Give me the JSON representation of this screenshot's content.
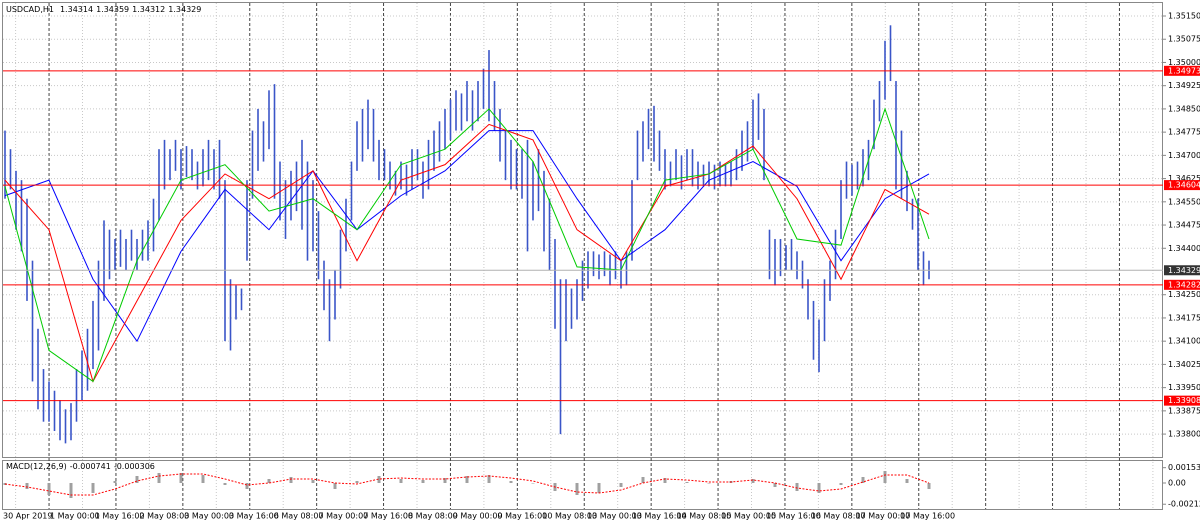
{
  "chart_data": [
    {
      "type": "ohlc",
      "title": "USDCAD,H1",
      "last_bar": [
        1.34314,
        1.34359,
        1.34312,
        1.34329
      ],
      "bars": {
        "color": "#3a55c8",
        "high": [
          1.3478,
          1.3472,
          1.3465,
          1.3462,
          1.3456,
          1.3436,
          1.3414,
          1.3401,
          1.3397,
          1.3394,
          1.3391,
          1.3388,
          1.339,
          1.3401,
          1.3407,
          1.3414,
          1.3423,
          1.3436,
          1.3449,
          1.3446,
          1.3443,
          1.3446,
          1.3443,
          1.3446,
          1.3443,
          1.3446,
          1.3449,
          1.3456,
          1.3472,
          1.3475,
          1.3472,
          1.3475,
          1.3472,
          1.3473,
          1.3472,
          1.3468,
          1.3472,
          1.3475,
          1.3472,
          1.3475,
          1.3462,
          1.343,
          1.3428,
          1.3427,
          1.3462,
          1.3478,
          1.3485,
          1.3481,
          1.3491,
          1.3493,
          1.3468,
          1.3462,
          1.3465,
          1.3468,
          1.3475,
          1.3468,
          1.3462,
          1.3452,
          1.3436,
          1.343,
          1.3433,
          1.3446,
          1.3456,
          1.3468,
          1.3481,
          1.3485,
          1.3488,
          1.3485,
          1.3475,
          1.3472,
          1.3468,
          1.3465,
          1.3468,
          1.3467,
          1.3472,
          1.3472,
          1.3468,
          1.3475,
          1.3478,
          1.3481,
          1.3485,
          1.3488,
          1.3491,
          1.349,
          1.3494,
          1.3491,
          1.3494,
          1.3498,
          1.3504,
          1.3494,
          1.3485,
          1.3478,
          1.3475,
          1.3472,
          1.3472,
          1.3475,
          1.3468,
          1.3472,
          1.3465,
          1.3456,
          1.3443,
          1.343,
          1.343,
          1.3427,
          1.343,
          1.3436,
          1.3439,
          1.3439,
          1.3438,
          1.3439,
          1.3438,
          1.3439,
          1.3436,
          1.3439,
          1.3462,
          1.3478,
          1.3481,
          1.3485,
          1.3486,
          1.3478,
          1.3472,
          1.3468,
          1.3472,
          1.347,
          1.3472,
          1.3472,
          1.3468,
          1.3467,
          1.3468,
          1.3467,
          1.3468,
          1.3467,
          1.3468,
          1.3472,
          1.3478,
          1.3481,
          1.3488,
          1.349,
          1.3485,
          1.3446,
          1.3443,
          1.3443,
          1.3441,
          1.3443,
          1.3439,
          1.3436,
          1.343,
          1.3423,
          1.3417,
          1.343,
          1.3436,
          1.3446,
          1.3462,
          1.3468,
          1.3467,
          1.3468,
          1.3472,
          1.3475,
          1.3488,
          1.3494,
          1.3507,
          1.3512,
          1.3494,
          1.3478,
          1.3465,
          1.3456,
          1.3456,
          1.3439,
          1.3436
        ],
        "low": [
          1.3456,
          1.3459,
          1.3446,
          1.3439,
          1.3423,
          1.3397,
          1.3388,
          1.3384,
          1.3384,
          1.3381,
          1.3378,
          1.3377,
          1.3378,
          1.3384,
          1.3391,
          1.3394,
          1.3401,
          1.3407,
          1.3423,
          1.343,
          1.3433,
          1.3434,
          1.3433,
          1.3436,
          1.3433,
          1.3436,
          1.3436,
          1.3439,
          1.3449,
          1.3459,
          1.3462,
          1.3465,
          1.3459,
          1.3463,
          1.3462,
          1.3459,
          1.346,
          1.3462,
          1.3459,
          1.3456,
          1.341,
          1.3407,
          1.3417,
          1.342,
          1.3436,
          1.3456,
          1.3465,
          1.3468,
          1.3472,
          1.3456,
          1.3449,
          1.3443,
          1.3449,
          1.3452,
          1.3446,
          1.3436,
          1.3439,
          1.343,
          1.342,
          1.341,
          1.3417,
          1.3427,
          1.3439,
          1.3449,
          1.3465,
          1.3468,
          1.3472,
          1.3468,
          1.3462,
          1.3462,
          1.3459,
          1.3457,
          1.3459,
          1.3457,
          1.3459,
          1.3462,
          1.3456,
          1.3459,
          1.3465,
          1.3468,
          1.3472,
          1.3475,
          1.3478,
          1.3478,
          1.3481,
          1.3478,
          1.3481,
          1.3485,
          1.3481,
          1.3478,
          1.3468,
          1.3462,
          1.3459,
          1.3459,
          1.3456,
          1.3439,
          1.3449,
          1.3452,
          1.3439,
          1.3433,
          1.3414,
          1.338,
          1.341,
          1.3414,
          1.3417,
          1.3423,
          1.3427,
          1.3431,
          1.343,
          1.3431,
          1.3428,
          1.343,
          1.3427,
          1.3428,
          1.3436,
          1.3462,
          1.3468,
          1.3472,
          1.3468,
          1.3465,
          1.3459,
          1.346,
          1.3462,
          1.3459,
          1.3462,
          1.346,
          1.3459,
          1.346,
          1.346,
          1.3459,
          1.346,
          1.346,
          1.346,
          1.3462,
          1.3465,
          1.3468,
          1.3472,
          1.3475,
          1.3462,
          1.343,
          1.3428,
          1.3431,
          1.3433,
          1.3433,
          1.343,
          1.3427,
          1.3417,
          1.3404,
          1.34,
          1.341,
          1.3423,
          1.343,
          1.3443,
          1.3456,
          1.3457,
          1.3459,
          1.346,
          1.3462,
          1.3472,
          1.3481,
          1.3488,
          1.3494,
          1.3459,
          1.3456,
          1.3452,
          1.3446,
          1.3433,
          1.3428,
          1.343
        ]
      },
      "series": [
        {
          "color": "#0000ff",
          "values": [
            1.3457,
            1.3462,
            1.343,
            1.341,
            1.3439,
            1.3459,
            1.3446,
            1.3465,
            1.3446,
            1.3457,
            1.3465,
            1.3478,
            1.3478,
            1.3456,
            1.3436,
            1.3446,
            1.3462,
            1.3468,
            1.346,
            1.3436,
            1.3456,
            1.3464
          ]
        },
        {
          "color": "#ff0000",
          "values": [
            1.3462,
            1.3446,
            1.3397,
            1.3423,
            1.3449,
            1.3464,
            1.3456,
            1.3465,
            1.3436,
            1.3462,
            1.3467,
            1.348,
            1.3475,
            1.3446,
            1.3436,
            1.346,
            1.3464,
            1.3473,
            1.3456,
            1.343,
            1.3459,
            1.3451
          ]
        },
        {
          "color": "#00cc00",
          "values": [
            1.346,
            1.3407,
            1.3397,
            1.3436,
            1.3462,
            1.3467,
            1.3452,
            1.3456,
            1.3446,
            1.3467,
            1.3472,
            1.3485,
            1.3468,
            1.3434,
            1.3433,
            1.3462,
            1.3464,
            1.3472,
            1.3443,
            1.3441,
            1.3485,
            1.3443
          ]
        }
      ],
      "levels": {
        "color": "#ff0000",
        "values": [
          1.34973,
          1.34604,
          1.34282,
          1.33908
        ]
      },
      "current_price": 1.34329,
      "xlabels": [
        "30 Apr 2019",
        "1 May 00:00",
        "1 May 16:00",
        "2 May 08:00",
        "3 May 00:00",
        "3 May 16:00",
        "6 May 08:00",
        "7 May 00:00",
        "7 May 16:00",
        "8 May 08:00",
        "9 May 00:00",
        "9 May 16:00",
        "10 May 08:00",
        "13 May 00:00",
        "13 May 16:00",
        "14 May 08:00",
        "15 May 00:00",
        "15 May 16:00",
        "16 May 08:00",
        "17 May 00:00",
        "17 May 16:00"
      ],
      "ylim": [
        1.33726,
        1.35192
      ],
      "yticks": [
        {
          "value": 1.3515,
          "label": "1.35150"
        },
        1.35075,
        {
          "value": 1.35,
          "label": "1.35000"
        },
        1.34925,
        {
          "value": 1.3485,
          "label": "1.34850"
        },
        1.34775,
        {
          "value": 1.347,
          "label": "1.34700"
        },
        1.34625,
        {
          "value": 1.3455,
          "label": "1.34550"
        },
        1.34475,
        {
          "value": 1.344,
          "label": "1.34400"
        },
        {
          "value": 1.3425,
          "label": "1.34250"
        },
        1.34175,
        {
          "value": 1.341,
          "label": "1.34100"
        },
        1.34025,
        {
          "value": 1.3395,
          "label": "1.33950"
        },
        1.33875,
        {
          "value": 1.338,
          "label": "1.33800"
        }
      ],
      "grid": true
    },
    {
      "type": "macd",
      "title": "MACD(12,26,9)",
      "last_values": [
        -0.000741,
        -0.000306
      ],
      "histogram": {
        "color": "#a0a0a0",
        "values": [
          -0.0002,
          -0.0006,
          -0.0012,
          -0.0015,
          -0.001,
          0.0002,
          0.0007,
          0.001,
          0.001,
          0.0008,
          -0.0002,
          -0.0006,
          0.0004,
          0.0006,
          0.0003,
          -0.0006,
          0.0002,
          0.0007,
          0.0004,
          0.0003,
          0.0005,
          0.0007,
          0.0008,
          0.0002,
          0,
          -0.0008,
          -0.0012,
          -0.001,
          -0.0004,
          0.0006,
          0.0005,
          0.0001,
          0,
          0.0002,
          0.0004,
          -0.0004,
          -0.0008,
          -0.001,
          -0.0002,
          0.0006,
          0.0012,
          0.0004,
          -0.0006
        ]
      },
      "signal": {
        "color": "#ff0000",
        "values": [
          -0.0001,
          -0.0004,
          -0.0008,
          -0.0012,
          -0.0012,
          -0.0006,
          0.0002,
          0.0007,
          0.0009,
          0.0009,
          0.0004,
          -0.0002,
          0,
          0.0004,
          0.0004,
          0,
          -0.0001,
          0.0004,
          0.0005,
          0.0004,
          0.0004,
          0.0006,
          0.0007,
          0.0005,
          0.0002,
          -0.0004,
          -0.0009,
          -0.001,
          -0.0007,
          0,
          0.0004,
          0.0003,
          0.0001,
          0.0001,
          0.0003,
          0,
          -0.0005,
          -0.0008,
          -0.0006,
          0.0001,
          0.0008,
          0.0008,
          0
        ]
      },
      "ylim": [
        -0.0026,
        0.0022
      ],
      "yticks": [
        0.001532,
        {
          "value": 0,
          "label": "0.00"
        },
        -0.002123
      ]
    }
  ]
}
